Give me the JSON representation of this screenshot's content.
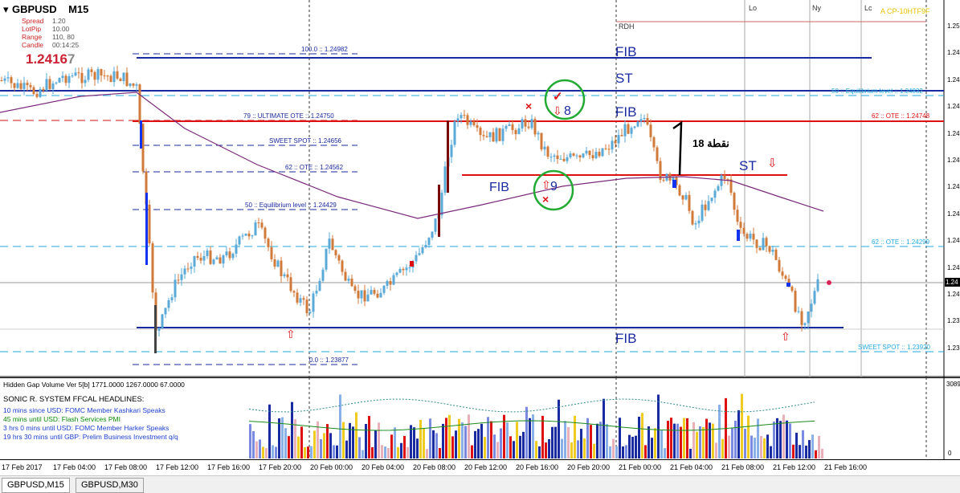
{
  "symbol_header": {
    "symbol": "GBPUSD",
    "timeframe": "M15"
  },
  "info_panel": {
    "lines": [
      {
        "label": "Spread",
        "value": "1.20"
      },
      {
        "label": "LotPip",
        "value": "10.00"
      },
      {
        "label": "Range",
        "value": "110, 80"
      },
      {
        "label": "Candle",
        "value": "00:14:25"
      }
    ],
    "price_main": "1.2416",
    "price_last_digit": "7",
    "price_color": "#cc2233"
  },
  "session_labels": [
    "Lo",
    "Ny",
    "Lc"
  ],
  "top_right_label": "A CP-10HTF9F",
  "rdh_label": "RDH",
  "level_labels": {
    "fib_100": "100.0 :: 1.24982",
    "fib_79": "79 :: ULTIMATE OTE :: 1.24750",
    "sweet_spot_1": "SWEET SPOT :: 1.24656",
    "ote_62_1": "62 :: OTE :: 1.24562",
    "equilibrium_1": "50 :: Equilibrium level :: 1.24429",
    "fib_0": "0.0 :: 1.23877",
    "equilibrium_2": "50 :: Equilibrium level :: 1.24832",
    "ote_62_red": "62 :: OTE :: 1.24748",
    "ote_62_cyan": "62 :: OTE :: 1.24299",
    "sweet_spot_2": "SWEET SPOT :: 1.23920"
  },
  "annotations": {
    "fib": "FIB",
    "st": "ST",
    "num_8": "8",
    "num_9": "9",
    "points": "18 نقطة",
    "up_arrow": "⇧",
    "down_arrow": "⇩",
    "cross": "×",
    "check": "✓"
  },
  "price_axis": {
    "ticks": [
      "1.25",
      "1.24",
      "1.24",
      "1.24",
      "1.24",
      "1.24",
      "1.24",
      "1.24",
      "1.24",
      "1.24",
      "1.24",
      "1.23",
      "1.23"
    ],
    "current": "1.24"
  },
  "volume_indicator": {
    "title": "Hidden Gap Volume Ver 5[b] 1771.0000 1267.0000 67.0000",
    "axis_top": "3089",
    "axis_bottom": "0"
  },
  "headlines": {
    "title": "SONIC R. SYSTEM  FFCAL HEADLINES:",
    "items": [
      {
        "text": "10 mins since USD: FOMC Member Kashkari Speaks",
        "color": "#1c3fd0"
      },
      {
        "text": "45 mins until USD: Flash Services PMI",
        "color": "#0a8a0a"
      },
      {
        "text": "3 hrs 0 mins until USD: FOMC Member Harker Speaks",
        "color": "#1c3fd0"
      },
      {
        "text": "19 hrs 30 mins until GBP: Prelim Business Investment q/q",
        "color": "#1c3fd0"
      }
    ]
  },
  "time_axis": [
    "17 Feb 2017",
    "17 Feb 04:00",
    "17 Feb 08:00",
    "17 Feb 12:00",
    "17 Feb 16:00",
    "17 Feb 20:00",
    "20 Feb 00:00",
    "20 Feb 04:00",
    "20 Feb 08:00",
    "20 Feb 12:00",
    "20 Feb 16:00",
    "20 Feb 20:00",
    "21 Feb 00:00",
    "21 Feb 04:00",
    "21 Feb 08:00",
    "21 Feb 12:00",
    "21 Feb 16:00"
  ],
  "tabs": [
    {
      "label": "GBPUSD,M15",
      "active": true
    },
    {
      "label": "GBPUSD,M30",
      "active": false
    }
  ],
  "colors": {
    "candle_up": "#5aa9d6",
    "candle_down": "#d07a3a",
    "fib_line": "#1a2aa0",
    "ote_line": "#dd1111",
    "dashed_blue": "#1a2aa0",
    "cyan_dashed": "#22aadd",
    "ma_line": "#7a2a7a",
    "green_circle": "#22aa33"
  }
}
